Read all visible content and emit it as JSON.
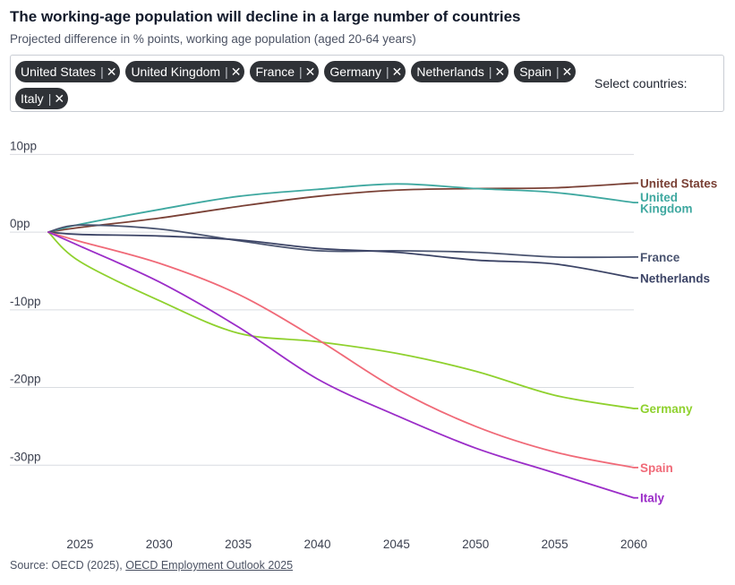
{
  "header": {
    "title": "The working-age population will decline in a large number of countries",
    "subtitle": "Projected difference in % points, working age population (aged 20-64 years)"
  },
  "selector": {
    "chips": [
      "United States",
      "United Kingdom",
      "France",
      "Germany",
      "Netherlands",
      "Spain",
      "Italy"
    ],
    "separator": "|",
    "remove_icon": "close-icon",
    "label": "Select countries:"
  },
  "footer": {
    "source_prefix": "Source: OECD (2025),",
    "source_link": "OECD Employment Outlook 2025"
  },
  "chart_data": {
    "type": "line",
    "x": [
      2023,
      2025,
      2030,
      2035,
      2040,
      2045,
      2050,
      2055,
      2060
    ],
    "xlim": [
      2021,
      2061
    ],
    "ylim": [
      -37,
      12
    ],
    "x_ticks": [
      "2025",
      "2030",
      "2035",
      "2040",
      "2045",
      "2050",
      "2055",
      "2060"
    ],
    "y_ticks": [
      {
        "value": 10,
        "label": "10pp"
      },
      {
        "value": 0,
        "label": "0pp"
      },
      {
        "value": -10,
        "label": "-10pp"
      },
      {
        "value": -20,
        "label": "-20pp"
      },
      {
        "value": -30,
        "label": "-30pp"
      }
    ],
    "grid": "horizontal",
    "legend": "end-of-line labels",
    "series": [
      {
        "name": "United States",
        "label_lines": [
          "United States"
        ],
        "color": "#7a4136",
        "values": [
          0,
          0.6,
          1.8,
          3.3,
          4.6,
          5.4,
          5.6,
          5.7,
          6.3
        ]
      },
      {
        "name": "United Kingdom",
        "label_lines": [
          "United",
          "Kingdom"
        ],
        "color": "#3fa8a0",
        "values": [
          0,
          1.0,
          2.9,
          4.6,
          5.5,
          6.2,
          5.6,
          5.1,
          3.8
        ]
      },
      {
        "name": "France",
        "label_lines": [
          "France"
        ],
        "color": "#4a5470",
        "values": [
          0,
          0.9,
          0.4,
          -1.1,
          -2.4,
          -2.4,
          -2.6,
          -3.2,
          -3.2
        ]
      },
      {
        "name": "Netherlands",
        "label_lines": [
          "Netherlands"
        ],
        "color": "#3c4466",
        "values": [
          0,
          -0.3,
          -0.5,
          -1.0,
          -2.1,
          -2.6,
          -3.6,
          -4.1,
          -5.9
        ]
      },
      {
        "name": "Germany",
        "label_lines": [
          "Germany"
        ],
        "color": "#8fd12e",
        "values": [
          0,
          -3.8,
          -8.8,
          -13.0,
          -14.1,
          -15.6,
          -17.9,
          -21.0,
          -22.7
        ]
      },
      {
        "name": "Spain",
        "label_lines": [
          "Spain"
        ],
        "color": "#f06a78",
        "values": [
          0,
          -1.2,
          -4.0,
          -8.0,
          -13.8,
          -20.2,
          -25.0,
          -28.3,
          -30.3
        ]
      },
      {
        "name": "Italy",
        "label_lines": [
          "Italy"
        ],
        "color": "#9b2dc8",
        "values": [
          0,
          -1.8,
          -6.4,
          -12.2,
          -18.9,
          -23.6,
          -27.8,
          -31.0,
          -34.2
        ]
      }
    ]
  }
}
